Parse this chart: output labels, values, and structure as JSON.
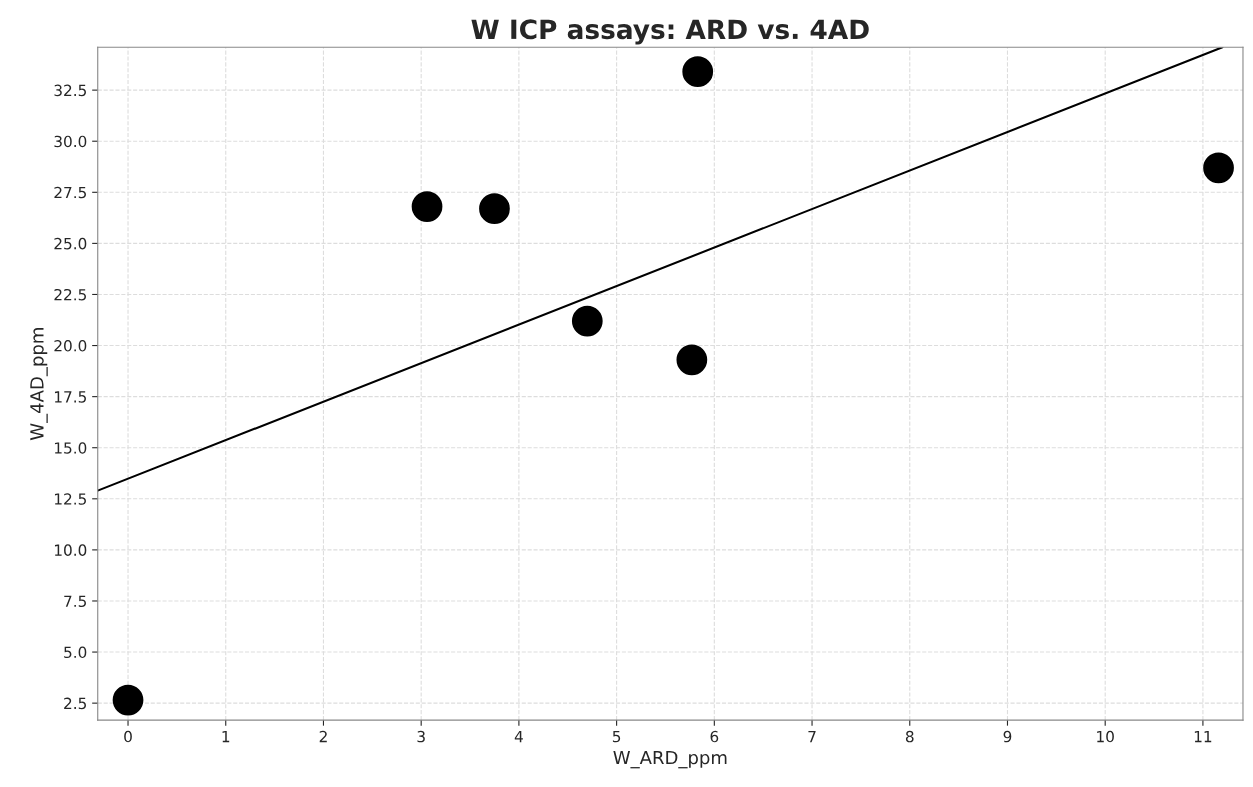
{
  "chart_data": {
    "type": "scatter",
    "title": "W ICP assays: ARD vs. 4AD",
    "xlabel": "W_ARD_ppm",
    "ylabel": "W_4AD_ppm",
    "x": [
      0.0,
      3.06,
      3.75,
      4.7,
      5.83,
      5.77,
      11.16
    ],
    "values": [
      2.65,
      26.8,
      26.7,
      21.2,
      33.4,
      19.3,
      28.7
    ],
    "color": "#000000",
    "marker": "circle",
    "series": [
      {
        "type": "line",
        "x": [
          -0.31,
          11.2
        ],
        "values": [
          12.9,
          34.6
        ],
        "color": "#000000",
        "marker": "none"
      }
    ],
    "xlim": [
      -0.31,
      11.41
    ],
    "xticks": [
      0,
      1,
      2,
      3,
      4,
      5,
      6,
      7,
      8,
      9,
      10,
      11
    ],
    "ylim": [
      1.67,
      34.6
    ],
    "yticks": [
      2.5,
      {
        "value": 5,
        "label": "5.0"
      },
      7.5,
      {
        "value": 10,
        "label": "10.0"
      },
      12.5,
      {
        "value": 15,
        "label": "15.0"
      },
      17.5,
      {
        "value": 20,
        "label": "20.0"
      },
      22.5,
      {
        "value": 25,
        "label": "25.0"
      },
      27.5,
      {
        "value": 30,
        "label": "30.0"
      },
      32.5
    ],
    "grid": true
  }
}
